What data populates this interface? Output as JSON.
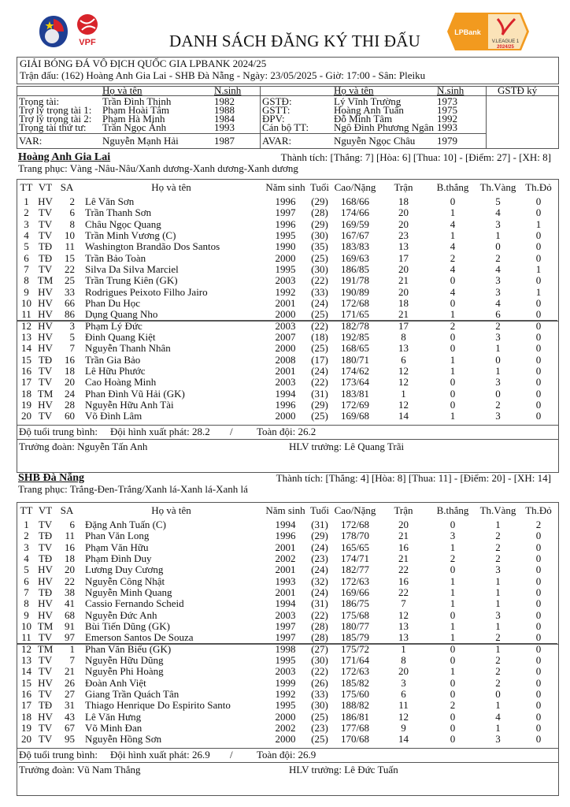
{
  "header": {
    "title": "DANH SÁCH ĐĂNG KÝ THI ĐẤU",
    "logo_left_1": "VFF",
    "logo_left_2": "VPF",
    "logo_right_brand": "LPBank",
    "logo_right_league": "V.LEAGUE 1",
    "logo_right_season": "2024/25",
    "tournament": "GIẢI BÓNG ĐÁ VÔ ĐỊCH QUỐC GIA LPBANK 2024/25",
    "match_info": "Trận đấu: (162) Hoàng Anh Gia Lai - SHB Đà Nẵng - Ngày: 23/05/2025 - Giờ: 17:00 - Sân: Pleiku"
  },
  "officials": {
    "col_name": "Họ và tên",
    "col_year": "N.sinh",
    "col_sign": "GSTĐ ký",
    "left": [
      {
        "role": "Trọng tài:",
        "name": "Trần Đình Thịnh",
        "year": "1982"
      },
      {
        "role": "Trợ lý trọng tài 1:",
        "name": "Phạm Hoài Tâm",
        "year": "1988"
      },
      {
        "role": "Trợ lý trọng tài 2:",
        "name": "Phạm Hà Minh",
        "year": "1984"
      },
      {
        "role": "Trọng tài thứ tư:",
        "name": "Trần Ngọc Ánh",
        "year": "1993"
      },
      {
        "role": "VAR:",
        "name": "Nguyễn Mạnh Hải",
        "year": "1987"
      }
    ],
    "right": [
      {
        "role": "GSTĐ:",
        "name": "Lý Vĩnh Trường",
        "year": "1973"
      },
      {
        "role": "GSTT:",
        "name": "Hoàng Anh Tuấn",
        "year": "1975"
      },
      {
        "role": "ĐPV:",
        "name": "Đỗ Minh Tâm",
        "year": "1992"
      },
      {
        "role": "Cán bộ TT:",
        "name": "Ngô Đình Phương Ngân",
        "year": "1993"
      },
      {
        "role": "AVAR:",
        "name": "Nguyễn Ngọc Châu",
        "year": "1979"
      }
    ]
  },
  "columns": [
    "TT",
    "VT",
    "SA",
    "Họ và tên",
    "Năm sinh",
    "Tuổi",
    "Cao/Nặng",
    "Trận",
    "B.thắng",
    "Th.Vàng",
    "Th.Đỏ"
  ],
  "teams": [
    {
      "name": "Hoàng Anh Gia Lai",
      "record": "Thành tích: [Thắng: 7] [Hòa: 6] [Thua: 10] - [Điểm: 27] - [XH: 8]",
      "kit": "Trang phục: Vàng -Nâu-Nâu/Xanh dương-Xanh dương-Xanh dương",
      "avg_label": "Độ tuổi trung bình:",
      "avg_start": "Đội hình xuất phát: 28.2",
      "avg_sep": "/",
      "avg_all": "Toàn đội: 26.2",
      "manager": "Trưởng đoàn: Nguyễn Tấn Anh",
      "coach": "HLV trưởng: Lê Quang Trãi",
      "players": [
        [
          "1",
          "HV",
          "2",
          "Lê Văn Sơn",
          "1996",
          "(29)",
          "168/66",
          "18",
          "0",
          "5",
          "0"
        ],
        [
          "2",
          "TV",
          "6",
          "Trần Thanh Sơn",
          "1997",
          "(28)",
          "174/66",
          "20",
          "1",
          "4",
          "0"
        ],
        [
          "3",
          "TV",
          "8",
          "Châu Ngọc Quang",
          "1996",
          "(29)",
          "169/59",
          "20",
          "4",
          "3",
          "1"
        ],
        [
          "4",
          "TV",
          "10",
          "Trần Minh Vương (C)",
          "1995",
          "(30)",
          "167/67",
          "23",
          "1",
          "1",
          "0"
        ],
        [
          "5",
          "TĐ",
          "11",
          "Washington Brandão Dos Santos",
          "1990",
          "(35)",
          "183/83",
          "13",
          "4",
          "0",
          "0"
        ],
        [
          "6",
          "TĐ",
          "15",
          "Trần Bảo Toàn",
          "2000",
          "(25)",
          "169/63",
          "17",
          "2",
          "2",
          "0"
        ],
        [
          "7",
          "TV",
          "22",
          "Silva Da Silva Marciel",
          "1995",
          "(30)",
          "186/85",
          "20",
          "4",
          "4",
          "1"
        ],
        [
          "8",
          "TM",
          "25",
          "Trần Trung Kiên (GK)",
          "2003",
          "(22)",
          "191/78",
          "21",
          "0",
          "3",
          "0"
        ],
        [
          "9",
          "HV",
          "33",
          "Rodrigues Peixoto Filho Jairo",
          "1992",
          "(33)",
          "190/89",
          "20",
          "4",
          "3",
          "1"
        ],
        [
          "10",
          "HV",
          "66",
          "Phan Du Học",
          "2001",
          "(24)",
          "172/68",
          "18",
          "0",
          "4",
          "0"
        ],
        [
          "11",
          "HV",
          "86",
          "Dụng Quang Nho",
          "2000",
          "(25)",
          "171/65",
          "21",
          "1",
          "6",
          "0"
        ],
        [
          "12",
          "HV",
          "3",
          "Phạm Lý Đức",
          "2003",
          "(22)",
          "182/78",
          "17",
          "2",
          "2",
          "0"
        ],
        [
          "13",
          "HV",
          "5",
          "Đinh Quang Kiệt",
          "2007",
          "(18)",
          "192/85",
          "8",
          "0",
          "3",
          "0"
        ],
        [
          "14",
          "HV",
          "7",
          "Nguyễn Thanh Nhân",
          "2000",
          "(25)",
          "168/65",
          "13",
          "0",
          "1",
          "0"
        ],
        [
          "15",
          "TĐ",
          "16",
          "Trần Gia Bảo",
          "2008",
          "(17)",
          "180/71",
          "6",
          "1",
          "0",
          "0"
        ],
        [
          "16",
          "TV",
          "18",
          "Lê Hữu Phước",
          "2001",
          "(24)",
          "174/62",
          "12",
          "1",
          "1",
          "0"
        ],
        [
          "17",
          "TV",
          "20",
          "Cao Hoàng Minh",
          "2003",
          "(22)",
          "173/64",
          "12",
          "0",
          "3",
          "0"
        ],
        [
          "18",
          "TM",
          "24",
          "Phan Đình Vũ Hải (GK)",
          "1994",
          "(31)",
          "183/81",
          "1",
          "0",
          "0",
          "0"
        ],
        [
          "19",
          "HV",
          "28",
          "Nguyễn Hữu Anh Tài",
          "1996",
          "(29)",
          "172/69",
          "12",
          "0",
          "2",
          "0"
        ],
        [
          "20",
          "TV",
          "60",
          "Võ Đình Lâm",
          "2000",
          "(25)",
          "169/68",
          "14",
          "1",
          "3",
          "0"
        ]
      ]
    },
    {
      "name": "SHB Đà Nẵng",
      "record": "Thành tích: [Thắng: 4] [Hòa: 8] [Thua: 11] - [Điểm: 20] - [XH: 14]",
      "kit": "Trang phục: Trắng-Đen-Trắng/Xanh lá-Xanh lá-Xanh lá",
      "avg_label": "Độ tuổi trung bình:",
      "avg_start": "Đội hình xuất phát: 26.9",
      "avg_sep": "/",
      "avg_all": "Toàn đội: 26.9",
      "manager": "Trưởng đoàn: Vũ Nam Thắng",
      "coach": "HLV trưởng: Lê Đức Tuấn",
      "players": [
        [
          "1",
          "TV",
          "6",
          "Đặng Anh Tuấn (C)",
          "1994",
          "(31)",
          "172/68",
          "20",
          "0",
          "1",
          "2"
        ],
        [
          "2",
          "TĐ",
          "11",
          "Phan Văn Long",
          "1996",
          "(29)",
          "178/70",
          "21",
          "3",
          "2",
          "0"
        ],
        [
          "3",
          "TV",
          "16",
          "Phạm Văn Hữu",
          "2001",
          "(24)",
          "165/65",
          "16",
          "1",
          "2",
          "0"
        ],
        [
          "4",
          "TĐ",
          "18",
          "Phạm Đình Duy",
          "2002",
          "(23)",
          "174/71",
          "21",
          "2",
          "2",
          "0"
        ],
        [
          "5",
          "HV",
          "20",
          "Lương Duy Cương",
          "2001",
          "(24)",
          "182/77",
          "22",
          "0",
          "3",
          "0"
        ],
        [
          "6",
          "HV",
          "22",
          "Nguyễn Công Nhật",
          "1993",
          "(32)",
          "172/63",
          "16",
          "1",
          "1",
          "0"
        ],
        [
          "7",
          "TĐ",
          "38",
          "Nguyễn Minh Quang",
          "2001",
          "(24)",
          "169/66",
          "22",
          "1",
          "1",
          "0"
        ],
        [
          "8",
          "HV",
          "41",
          "Cassio Fernando Scheid",
          "1994",
          "(31)",
          "186/75",
          "7",
          "1",
          "1",
          "0"
        ],
        [
          "9",
          "HV",
          "68",
          "Nguyễn Đức Anh",
          "2003",
          "(22)",
          "175/68",
          "12",
          "0",
          "3",
          "0"
        ],
        [
          "10",
          "TM",
          "91",
          "Bùi Tiến Dũng (GK)",
          "1997",
          "(28)",
          "180/77",
          "13",
          "1",
          "1",
          "0"
        ],
        [
          "11",
          "TV",
          "97",
          "Emerson Santos De Souza",
          "1997",
          "(28)",
          "185/79",
          "13",
          "1",
          "2",
          "0"
        ],
        [
          "12",
          "TM",
          "1",
          "Phan Văn Biểu (GK)",
          "1998",
          "(27)",
          "175/72",
          "1",
          "0",
          "1",
          "0"
        ],
        [
          "13",
          "TV",
          "7",
          "Nguyễn Hữu Dũng",
          "1995",
          "(30)",
          "171/64",
          "8",
          "0",
          "2",
          "0"
        ],
        [
          "14",
          "TV",
          "21",
          "Nguyễn Phi Hoàng",
          "2003",
          "(22)",
          "172/63",
          "20",
          "1",
          "2",
          "0"
        ],
        [
          "15",
          "HV",
          "26",
          "Đoàn Anh Việt",
          "1999",
          "(26)",
          "185/82",
          "3",
          "0",
          "2",
          "0"
        ],
        [
          "16",
          "TV",
          "27",
          "Giang Trần Quách Tân",
          "1992",
          "(33)",
          "175/60",
          "6",
          "0",
          "0",
          "0"
        ],
        [
          "17",
          "TĐ",
          "31",
          "Thiago Henrique Do Espirito Santo",
          "1995",
          "(30)",
          "188/82",
          "11",
          "2",
          "1",
          "0"
        ],
        [
          "18",
          "HV",
          "43",
          "Lê Văn Hưng",
          "2000",
          "(25)",
          "186/81",
          "12",
          "0",
          "4",
          "0"
        ],
        [
          "19",
          "TV",
          "67",
          "Võ Minh Đan",
          "2002",
          "(23)",
          "177/68",
          "9",
          "0",
          "1",
          "0"
        ],
        [
          "20",
          "TV",
          "95",
          "Nguyễn Hồng Sơn",
          "2000",
          "(25)",
          "170/68",
          "14",
          "0",
          "3",
          "0"
        ]
      ]
    }
  ],
  "colors": {
    "vpf_red": "#d8232a",
    "vff_blue": "#1f3f93",
    "league_orange": "#f29a1f",
    "border": "#555555"
  }
}
